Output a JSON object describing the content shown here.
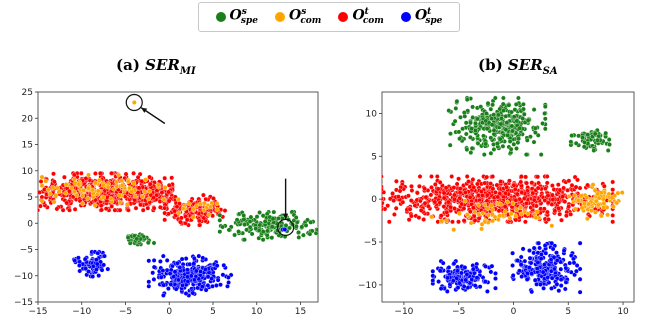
{
  "legend": {
    "items": [
      {
        "base": "O",
        "sup": "s",
        "sub": "spe",
        "color": "#1a7f1a"
      },
      {
        "base": "O",
        "sup": "s",
        "sub": "com",
        "color": "#ffa500"
      },
      {
        "base": "O",
        "sup": "t",
        "sub": "com",
        "color": "#ff0000"
      },
      {
        "base": "O",
        "sup": "t",
        "sub": "spe",
        "color": "#0000ff"
      }
    ]
  },
  "chart_data": [
    {
      "type": "scatter",
      "label": "(a)",
      "title_main": "SER",
      "title_sub": "MI",
      "xlim": [
        -15,
        17
      ],
      "ylim": [
        -15,
        25
      ],
      "xticks": [
        -15,
        -10,
        -5,
        0,
        5,
        10,
        15
      ],
      "yticks": [
        -15,
        -10,
        -5,
        0,
        5,
        10,
        15,
        20,
        25
      ],
      "clusters": [
        {
          "series": "O^t_com",
          "color": "#ff0000",
          "cx": -8.0,
          "cy": 6.0,
          "sx": 3.8,
          "sy": 1.6,
          "n": 520
        },
        {
          "series": "O^t_com",
          "color": "#ff0000",
          "cx": -2.5,
          "cy": 5.5,
          "sx": 1.5,
          "sy": 1.2,
          "n": 140
        },
        {
          "series": "O^t_com",
          "color": "#ff0000",
          "cx": 3.0,
          "cy": 2.5,
          "sx": 1.6,
          "sy": 1.3,
          "n": 160
        },
        {
          "series": "O^s_com",
          "color": "#ffa500",
          "cx": -7.5,
          "cy": 6.5,
          "sx": 3.2,
          "sy": 1.4,
          "n": 90
        },
        {
          "series": "O^s_com",
          "color": "#ffa500",
          "cx": 3.5,
          "cy": 3.0,
          "sx": 1.5,
          "sy": 1.0,
          "n": 20
        },
        {
          "series": "O^s_com",
          "color": "#ffa500",
          "cx": -4.0,
          "cy": 23.0,
          "sx": 0.0,
          "sy": 0.0,
          "n": 1
        },
        {
          "series": "O^s_spe",
          "color": "#1a7f1a",
          "cx": 11.5,
          "cy": -0.5,
          "sx": 2.6,
          "sy": 1.2,
          "n": 190
        },
        {
          "series": "O^s_spe",
          "color": "#1a7f1a",
          "cx": -3.5,
          "cy": -3.0,
          "sx": 0.8,
          "sy": 0.5,
          "n": 40
        },
        {
          "series": "O^t_spe",
          "color": "#0000ff",
          "cx": -9.0,
          "cy": -7.5,
          "sx": 0.9,
          "sy": 1.2,
          "n": 90
        },
        {
          "series": "O^t_spe",
          "color": "#0000ff",
          "cx": 2.5,
          "cy": -10.0,
          "sx": 2.2,
          "sy": 1.7,
          "n": 260
        },
        {
          "series": "O^t_spe",
          "color": "#0000ff",
          "cx": 13.0,
          "cy": -1.0,
          "sx": 0.3,
          "sy": 0.3,
          "n": 3
        }
      ],
      "annotations": [
        {
          "type": "circle",
          "x": -4.0,
          "y": 23.0
        },
        {
          "type": "arrow",
          "x1": -0.5,
          "y1": 19.0,
          "x2": -3.2,
          "y2": 22.0
        },
        {
          "type": "circle",
          "x": 13.3,
          "y": -0.8
        },
        {
          "type": "arrow",
          "x1": 13.3,
          "y1": 8.5,
          "x2": 13.3,
          "y2": 0.8
        }
      ]
    },
    {
      "type": "scatter",
      "label": "(b)",
      "title_main": "SER",
      "title_sub": "SA",
      "xlim": [
        -12,
        11
      ],
      "ylim": [
        -12,
        12.5
      ],
      "xticks": [
        -10,
        -5,
        0,
        5,
        10
      ],
      "yticks": [
        -10,
        -5,
        0,
        5,
        10
      ],
      "clusters": [
        {
          "series": "O^t_com",
          "color": "#ff0000",
          "cx": -1.5,
          "cy": 0.0,
          "sx": 4.8,
          "sy": 1.2,
          "n": 900
        },
        {
          "series": "O^s_com",
          "color": "#ffa500",
          "cx": 7.5,
          "cy": -0.3,
          "sx": 1.1,
          "sy": 0.9,
          "n": 80
        },
        {
          "series": "O^s_com",
          "color": "#ffa500",
          "cx": -2.0,
          "cy": -1.8,
          "sx": 2.5,
          "sy": 0.8,
          "n": 50
        },
        {
          "series": "O^s_spe",
          "color": "#1a7f1a",
          "cx": -1.5,
          "cy": 8.5,
          "sx": 2.0,
          "sy": 1.5,
          "n": 330
        },
        {
          "series": "O^s_spe",
          "color": "#1a7f1a",
          "cx": 7.0,
          "cy": 7.0,
          "sx": 0.8,
          "sy": 0.6,
          "n": 70
        },
        {
          "series": "O^t_spe",
          "color": "#0000ff",
          "cx": -4.5,
          "cy": -9.0,
          "sx": 1.3,
          "sy": 0.8,
          "n": 180
        },
        {
          "series": "O^t_spe",
          "color": "#0000ff",
          "cx": 3.0,
          "cy": -8.0,
          "sx": 1.4,
          "sy": 1.3,
          "n": 230
        }
      ],
      "annotations": []
    }
  ]
}
